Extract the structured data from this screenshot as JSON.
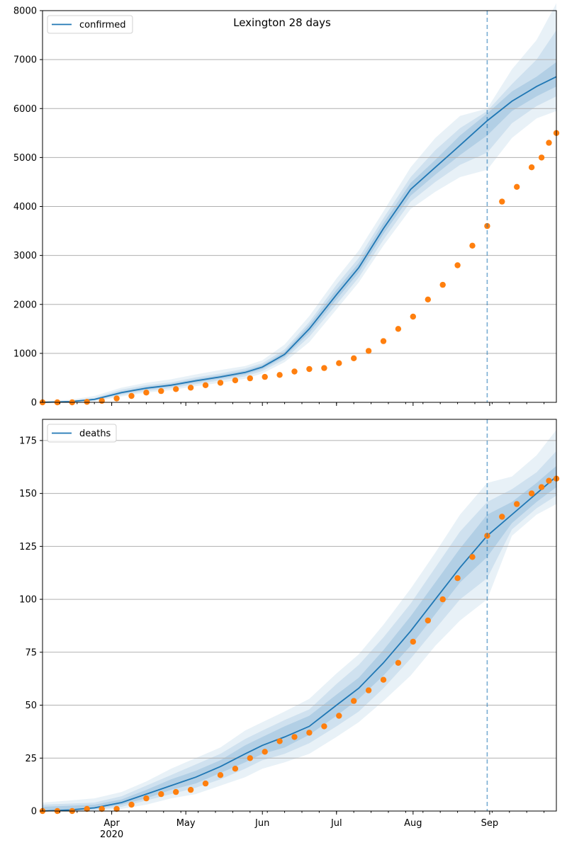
{
  "figure": {
    "title": "Lexington 28 days",
    "colors": {
      "model": "#1f77b4",
      "observed": "#ff7f0e",
      "band": "#1f77b4",
      "grid": "#b0b0b0"
    }
  },
  "chart_data": [
    {
      "type": "line",
      "panel": "top",
      "title": "Lexington 28 days",
      "legend": {
        "entries": [
          "confirmed"
        ],
        "placement": "upper-left"
      },
      "x_axis": {
        "type": "date",
        "range": [
          "2020-03-04",
          "2020-09-28"
        ],
        "major_ticks": [
          {
            "date": "2020-04-01",
            "label": "Apr",
            "label2": "2020"
          },
          {
            "date": "2020-05-01",
            "label": "May"
          },
          {
            "date": "2020-06-01",
            "label": "Jun"
          },
          {
            "date": "2020-07-01",
            "label": "Jul"
          },
          {
            "date": "2020-08-01",
            "label": "Aug"
          },
          {
            "date": "2020-09-01",
            "label": "Sep"
          }
        ],
        "minor_ticks": "weekly",
        "show_labels": false
      },
      "ylim": [
        0,
        8000
      ],
      "yticks": [
        0,
        1000,
        2000,
        3000,
        4000,
        5000,
        6000,
        7000,
        8000
      ],
      "grid": "y-major",
      "vline": {
        "date": "2020-08-31",
        "style": "dashed"
      },
      "series": [
        {
          "name": "confirmed",
          "kind": "model-line",
          "x": [
            "2020-03-04",
            "2020-03-15",
            "2020-03-25",
            "2020-04-05",
            "2020-04-15",
            "2020-04-25",
            "2020-05-05",
            "2020-05-15",
            "2020-05-25",
            "2020-06-01",
            "2020-06-10",
            "2020-06-20",
            "2020-07-01",
            "2020-07-10",
            "2020-07-20",
            "2020-07-31",
            "2020-08-10",
            "2020-08-20",
            "2020-08-31",
            "2020-09-10",
            "2020-09-20",
            "2020-09-28"
          ],
          "y": [
            0,
            15,
            60,
            200,
            290,
            350,
            440,
            520,
            610,
            720,
            980,
            1500,
            2200,
            2750,
            3550,
            4350,
            4800,
            5250,
            5750,
            6150,
            6450,
            6650
          ],
          "bands": [
            {
              "level": "outer",
              "lower": [
                0,
                0,
                20,
                120,
                200,
                250,
                330,
                400,
                480,
                590,
                820,
                1230,
                1900,
                2450,
                3200,
                3950,
                4300,
                4600,
                4750,
                5400,
                5800,
                5950
              ],
              "upper": [
                30,
                50,
                130,
                300,
                400,
                470,
                570,
                660,
                740,
                860,
                1180,
                1760,
                2530,
                3100,
                3900,
                4800,
                5400,
                5850,
                6000,
                6800,
                7400,
                8150
              ]
            },
            {
              "level": "middle",
              "lower": [
                0,
                5,
                35,
                150,
                230,
                290,
                370,
                450,
                530,
                640,
                880,
                1340,
                2000,
                2550,
                3320,
                4100,
                4500,
                4850,
                5100,
                5700,
                6050,
                6250
              ],
              "upper": [
                20,
                30,
                90,
                260,
                350,
                410,
                510,
                590,
                690,
                800,
                1080,
                1640,
                2400,
                2950,
                3760,
                4600,
                5150,
                5600,
                5950,
                6500,
                7000,
                7600
              ]
            },
            {
              "level": "inner",
              "lower": [
                0,
                10,
                45,
                175,
                260,
                320,
                405,
                485,
                570,
                680,
                930,
                1420,
                2100,
                2650,
                3440,
                4220,
                4650,
                5050,
                5450,
                5950,
                6250,
                6450
              ],
              "upper": [
                10,
                22,
                75,
                225,
                320,
                380,
                475,
                555,
                650,
                760,
                1030,
                1580,
                2300,
                2850,
                3660,
                4480,
                4950,
                5450,
                5900,
                6350,
                6650,
                6950
              ]
            }
          ]
        },
        {
          "name": "observed",
          "kind": "scatter-points",
          "points": [
            [
              "2020-03-04",
              0
            ],
            [
              "2020-03-10",
              0
            ],
            [
              "2020-03-16",
              0
            ],
            [
              "2020-03-22",
              10
            ],
            [
              "2020-03-28",
              30
            ],
            [
              "2020-04-03",
              80
            ],
            [
              "2020-04-09",
              130
            ],
            [
              "2020-04-15",
              200
            ],
            [
              "2020-04-21",
              230
            ],
            [
              "2020-04-27",
              270
            ],
            [
              "2020-05-03",
              300
            ],
            [
              "2020-05-09",
              350
            ],
            [
              "2020-05-15",
              400
            ],
            [
              "2020-05-21",
              450
            ],
            [
              "2020-05-27",
              490
            ],
            [
              "2020-06-02",
              520
            ],
            [
              "2020-06-08",
              560
            ],
            [
              "2020-06-14",
              630
            ],
            [
              "2020-06-20",
              680
            ],
            [
              "2020-06-26",
              700
            ],
            [
              "2020-07-02",
              800
            ],
            [
              "2020-07-08",
              900
            ],
            [
              "2020-07-14",
              1050
            ],
            [
              "2020-07-20",
              1250
            ],
            [
              "2020-07-26",
              1500
            ],
            [
              "2020-08-01",
              1750
            ],
            [
              "2020-08-07",
              2100
            ],
            [
              "2020-08-13",
              2400
            ],
            [
              "2020-08-19",
              2800
            ],
            [
              "2020-08-25",
              3200
            ],
            [
              "2020-08-31",
              3600
            ],
            [
              "2020-09-06",
              4100
            ],
            [
              "2020-09-12",
              4400
            ],
            [
              "2020-09-18",
              4800
            ],
            [
              "2020-09-22",
              5000
            ],
            [
              "2020-09-25",
              5300
            ],
            [
              "2020-09-28",
              5500
            ]
          ]
        }
      ]
    },
    {
      "type": "line",
      "panel": "bottom",
      "legend": {
        "entries": [
          "deaths"
        ],
        "placement": "upper-left"
      },
      "x_axis": {
        "type": "date",
        "range": [
          "2020-03-04",
          "2020-09-28"
        ],
        "major_ticks": [
          {
            "date": "2020-04-01",
            "label": "Apr",
            "label2": "2020"
          },
          {
            "date": "2020-05-01",
            "label": "May"
          },
          {
            "date": "2020-06-01",
            "label": "Jun"
          },
          {
            "date": "2020-07-01",
            "label": "Jul"
          },
          {
            "date": "2020-08-01",
            "label": "Aug"
          },
          {
            "date": "2020-09-01",
            "label": "Sep"
          }
        ],
        "minor_ticks": "weekly",
        "show_labels": true
      },
      "ylim": [
        0,
        185
      ],
      "yticks": [
        0,
        25,
        50,
        75,
        100,
        125,
        150,
        175
      ],
      "grid": "y-major",
      "vline": {
        "date": "2020-08-31",
        "style": "dashed"
      },
      "series": [
        {
          "name": "deaths",
          "kind": "model-line",
          "x": [
            "2020-03-04",
            "2020-03-15",
            "2020-03-25",
            "2020-04-05",
            "2020-04-15",
            "2020-04-25",
            "2020-05-05",
            "2020-05-15",
            "2020-05-25",
            "2020-06-01",
            "2020-06-10",
            "2020-06-20",
            "2020-07-01",
            "2020-07-10",
            "2020-07-20",
            "2020-07-31",
            "2020-08-10",
            "2020-08-20",
            "2020-08-31",
            "2020-09-10",
            "2020-09-20",
            "2020-09-28"
          ],
          "y": [
            0,
            0.5,
            1.5,
            4,
            8,
            12,
            16,
            21,
            27,
            31,
            35,
            40,
            50,
            58,
            70,
            85,
            100,
            115,
            130,
            140,
            150,
            158
          ],
          "bands": [
            {
              "level": "outer",
              "lower": [
                0,
                0,
                0,
                1,
                3,
                6,
                8,
                12,
                16,
                20,
                23,
                27,
                35,
                42,
                52,
                64,
                78,
                90,
                100,
                130,
                140,
                145
              ],
              "upper": [
                4,
                5,
                6,
                9,
                14,
                20,
                25,
                30,
                38,
                42,
                47,
                53,
                65,
                74,
                88,
                105,
                122,
                140,
                155,
                158,
                168,
                180
              ]
            },
            {
              "level": "middle",
              "lower": [
                0,
                0,
                0.5,
                2,
                5,
                8,
                11,
                15,
                20,
                24,
                27,
                32,
                40,
                47,
                58,
                72,
                86,
                100,
                110,
                133,
                143,
                149
              ],
              "upper": [
                3,
                3.5,
                4,
                7,
                12,
                17,
                22,
                27,
                34,
                38,
                43,
                48,
                60,
                69,
                82,
                98,
                115,
                132,
                146,
                152,
                160,
                170
              ]
            },
            {
              "level": "inner",
              "lower": [
                0,
                0,
                1,
                3,
                6,
                10,
                13,
                18,
                23,
                27,
                30,
                36,
                45,
                53,
                64,
                78,
                93,
                108,
                120,
                136,
                146,
                153
              ],
              "upper": [
                2,
                2.5,
                3,
                5.5,
                10,
                15,
                19,
                24,
                31,
                35,
                40,
                45,
                55,
                63,
                76,
                92,
                108,
                124,
                140,
                146,
                155,
                163
              ]
            }
          ]
        },
        {
          "name": "observed",
          "kind": "scatter-points",
          "points": [
            [
              "2020-03-04",
              0
            ],
            [
              "2020-03-10",
              0
            ],
            [
              "2020-03-16",
              0
            ],
            [
              "2020-03-22",
              1
            ],
            [
              "2020-03-28",
              1
            ],
            [
              "2020-04-03",
              1
            ],
            [
              "2020-04-09",
              3
            ],
            [
              "2020-04-15",
              6
            ],
            [
              "2020-04-21",
              8
            ],
            [
              "2020-04-27",
              9
            ],
            [
              "2020-05-03",
              10
            ],
            [
              "2020-05-09",
              13
            ],
            [
              "2020-05-15",
              17
            ],
            [
              "2020-05-21",
              20
            ],
            [
              "2020-05-27",
              25
            ],
            [
              "2020-06-02",
              28
            ],
            [
              "2020-06-08",
              33
            ],
            [
              "2020-06-14",
              35
            ],
            [
              "2020-06-20",
              37
            ],
            [
              "2020-06-26",
              40
            ],
            [
              "2020-07-02",
              45
            ],
            [
              "2020-07-08",
              52
            ],
            [
              "2020-07-14",
              57
            ],
            [
              "2020-07-20",
              62
            ],
            [
              "2020-07-26",
              70
            ],
            [
              "2020-08-01",
              80
            ],
            [
              "2020-08-07",
              90
            ],
            [
              "2020-08-13",
              100
            ],
            [
              "2020-08-19",
              110
            ],
            [
              "2020-08-25",
              120
            ],
            [
              "2020-08-31",
              130
            ],
            [
              "2020-09-06",
              139
            ],
            [
              "2020-09-12",
              145
            ],
            [
              "2020-09-18",
              150
            ],
            [
              "2020-09-22",
              153
            ],
            [
              "2020-09-25",
              156
            ],
            [
              "2020-09-28",
              157
            ]
          ]
        }
      ]
    }
  ]
}
